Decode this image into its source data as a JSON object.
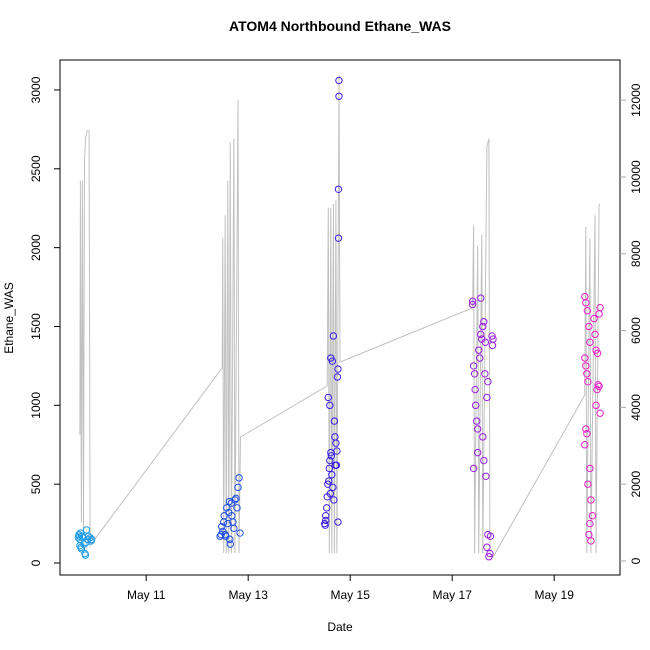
{
  "chart_data": {
    "type": "scatter",
    "title": "ATOM4 Northbound Ethane_WAS",
    "x_label": "Date",
    "y_label": "Ethane_WAS",
    "xlim": [
      9.31,
      20.29
    ],
    "xticks": [
      {
        "value": 11,
        "label": "May 11"
      },
      {
        "value": 13,
        "label": "May 13"
      },
      {
        "value": 15,
        "label": "May 15"
      },
      {
        "value": 17,
        "label": "May 17"
      },
      {
        "value": 19,
        "label": "May 19"
      }
    ],
    "ylim": [
      -76,
      3190
    ],
    "yticks": [
      0,
      500,
      1000,
      1500,
      2000,
      2500,
      3000
    ],
    "y2lim": [
      -365,
      13047
    ],
    "y2ticks": [
      0,
      2000,
      4000,
      6000,
      8000,
      10000,
      12000
    ],
    "y2_color": "#aaaaaa",
    "series": [
      {
        "type": "line",
        "axis": "y2",
        "color": "#c0c0c0",
        "x": [
          9.7,
          9.71,
          9.73,
          9.75,
          9.77,
          9.79,
          9.81,
          9.84,
          9.88,
          9.9,
          12.49,
          12.5,
          12.52,
          12.55,
          12.57,
          12.6,
          12.62,
          12.65,
          12.67,
          12.72,
          12.74,
          12.8,
          12.82,
          12.85,
          14.55,
          14.57,
          14.59,
          14.62,
          14.64,
          14.67,
          14.69,
          14.72,
          14.74,
          14.78,
          14.8,
          17.4,
          17.42,
          17.44,
          17.5,
          17.52,
          17.58,
          17.6,
          17.68,
          17.72,
          17.74,
          17.8,
          19.6,
          19.62,
          19.64,
          19.7,
          19.72,
          19.8,
          19.82,
          19.88,
          19.9
        ],
        "values": [
          3280,
          9900,
          1000,
          9900,
          800,
          10400,
          11000,
          11200,
          11200,
          400,
          5030,
          8400,
          200,
          9000,
          200,
          9900,
          200,
          10900,
          200,
          11000,
          200,
          12000,
          200,
          3230,
          4560,
          9200,
          200,
          9200,
          200,
          9300,
          200,
          9400,
          200,
          12650,
          5180,
          6590,
          8750,
          200,
          8200,
          200,
          8500,
          200,
          10800,
          11000,
          200,
          100,
          4320,
          8700,
          200,
          8400,
          200,
          9000,
          200,
          9270,
          9300
        ]
      },
      {
        "type": "scatter",
        "color": "#1e9be8",
        "x": [
          9.67,
          9.68,
          9.7,
          9.71,
          9.72,
          9.73,
          9.75,
          9.76,
          9.78,
          9.8,
          9.81,
          9.83,
          9.85,
          9.87,
          9.9,
          9.92,
          9.93,
          9.7,
          9.69,
          9.82
        ],
        "values": [
          160,
          180,
          150,
          190,
          100,
          90,
          170,
          160,
          120,
          60,
          50,
          210,
          150,
          170,
          160,
          140,
          150,
          110,
          170,
          130
        ]
      },
      {
        "type": "scatter",
        "color": "#1f4ee6",
        "x": [
          12.45,
          12.47,
          12.48,
          12.5,
          12.52,
          12.53,
          12.55,
          12.56,
          12.58,
          12.6,
          12.62,
          12.63,
          12.64,
          12.65,
          12.67,
          12.68,
          12.7,
          12.72,
          12.74,
          12.8,
          12.82,
          12.78,
          12.76,
          12.84
        ],
        "values": [
          170,
          180,
          230,
          200,
          260,
          300,
          180,
          170,
          350,
          250,
          320,
          390,
          150,
          120,
          380,
          300,
          260,
          220,
          400,
          480,
          540,
          350,
          410,
          190
        ]
      },
      {
        "type": "scatter",
        "color": "#3a1ee8",
        "x": [
          14.5,
          14.51,
          14.52,
          14.54,
          14.55,
          14.56,
          14.58,
          14.59,
          14.6,
          14.62,
          14.63,
          14.64,
          14.66,
          14.68,
          14.57,
          14.6,
          14.62,
          14.65,
          14.67,
          14.69,
          14.7,
          14.72,
          14.73,
          14.74,
          14.78,
          14.78,
          14.77,
          14.77,
          14.76,
          14.75,
          14.52,
          14.76,
          14.71,
          14.61
        ],
        "values": [
          250,
          240,
          300,
          350,
          420,
          500,
          520,
          600,
          650,
          700,
          680,
          560,
          480,
          400,
          1050,
          1000,
          1300,
          1280,
          1440,
          900,
          800,
          760,
          620,
          710,
          3060,
          2960,
          2370,
          2060,
          1230,
          1180,
          270,
          260,
          620,
          440
        ]
      },
      {
        "type": "scatter",
        "color": "#9a1ee0",
        "x": [
          17.4,
          17.4,
          17.42,
          17.44,
          17.45,
          17.46,
          17.48,
          17.5,
          17.5,
          17.42,
          17.52,
          17.54,
          17.56,
          17.58,
          17.6,
          17.62,
          17.56,
          17.65,
          17.64,
          17.6,
          17.62,
          17.66,
          17.68,
          17.7,
          17.68,
          17.7,
          17.72,
          17.74,
          17.75,
          17.78,
          17.8,
          17.79
        ],
        "values": [
          1660,
          1640,
          1250,
          1200,
          1100,
          1000,
          900,
          850,
          700,
          600,
          1350,
          1300,
          1450,
          1420,
          1500,
          1530,
          1680,
          1400,
          1200,
          800,
          650,
          550,
          1050,
          1150,
          100,
          180,
          40,
          60,
          170,
          1440,
          1420,
          1380
        ]
      },
      {
        "type": "scatter",
        "color": "#e81ec8",
        "x": [
          19.6,
          19.62,
          19.65,
          19.68,
          19.7,
          19.6,
          19.62,
          19.64,
          19.66,
          19.62,
          19.64,
          19.6,
          19.7,
          19.66,
          19.72,
          19.75,
          19.7,
          19.68,
          19.72,
          19.78,
          19.8,
          19.82,
          19.84,
          19.86,
          19.88,
          19.9,
          19.9,
          19.88,
          19.85,
          19.82
        ],
        "values": [
          1690,
          1650,
          1600,
          1500,
          1400,
          1300,
          1250,
          1200,
          1150,
          850,
          820,
          750,
          600,
          500,
          400,
          300,
          250,
          180,
          140,
          1550,
          1450,
          1350,
          1100,
          1130,
          1120,
          950,
          1620,
          1580,
          1330,
          1000
        ]
      }
    ]
  }
}
